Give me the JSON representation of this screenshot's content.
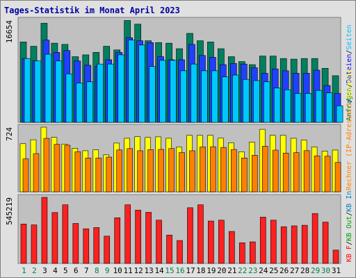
{
  "title": "Tages-Statistik im Monat April 2023",
  "colors": {
    "background": "#e0e0e0",
    "frame": "#808080",
    "panel": "#c0c0c0",
    "title": "#0000a0",
    "weekday_label": "#000000",
    "weekend_label": "#008040",
    "legend_hits": "#008040",
    "legend_files": "#0000ff",
    "legend_pages": "#00c0ff",
    "legend_visits": "#ff8000",
    "legend_sites": "#ffff00",
    "legend_kbin": "#0080c0",
    "legend_kbout": "#00a000",
    "legend_kbf": "#ff0000",
    "legend_sep": "#000000"
  },
  "chart_data": [
    {
      "type": "bar",
      "panel": "top",
      "ymax_label": "16654",
      "ymax": 16654,
      "categories": [
        "1",
        "2",
        "3",
        "4",
        "5",
        "6",
        "7",
        "8",
        "9",
        "10",
        "11",
        "12",
        "13",
        "14",
        "15",
        "16",
        "17",
        "18",
        "19",
        "20",
        "21",
        "22",
        "23",
        "24",
        "25",
        "26",
        "27",
        "28",
        "29",
        "30",
        "31"
      ],
      "weekend": [
        1,
        2,
        8,
        9,
        15,
        16,
        22,
        23,
        29,
        30
      ],
      "legend": [
        {
          "text": "Anfragen",
          "color": "#008040"
        },
        {
          "text": "/",
          "color": "#000000"
        },
        {
          "text": "Dateien",
          "color": "#0000ff"
        },
        {
          "text": "/",
          "color": "#000000"
        },
        {
          "text": "Seiten",
          "color": "#00c0ff"
        }
      ],
      "series": [
        {
          "name": "Anfragen",
          "color": "#008060",
          "values": [
            13100,
            12400,
            16150,
            12900,
            12700,
            10700,
            11000,
            11400,
            12400,
            11800,
            16600,
            16000,
            13300,
            13000,
            12900,
            12000,
            14500,
            13300,
            13100,
            12000,
            10700,
            9900,
            9400,
            10800,
            10800,
            10400,
            10300,
            10400,
            10400,
            8800,
            7600
          ]
        },
        {
          "name": "Dateien",
          "color": "#2040ff",
          "values": [
            10400,
            10000,
            13400,
            11400,
            11700,
            10000,
            9300,
            9100,
            10200,
            11400,
            13800,
            13300,
            13000,
            10700,
            10200,
            10200,
            12700,
            10900,
            10600,
            9400,
            9600,
            9500,
            8900,
            8000,
            8700,
            8400,
            8000,
            8000,
            8500,
            6000,
            4700
          ]
        },
        {
          "name": "Seiten",
          "color": "#00c8ff",
          "values": [
            10400,
            10000,
            11100,
            10000,
            7900,
            6400,
            6600,
            9500,
            9500,
            11000,
            13400,
            12600,
            9100,
            10100,
            10100,
            8400,
            9500,
            8400,
            8400,
            7400,
            7700,
            7000,
            6800,
            6600,
            5600,
            5300,
            4700,
            4700,
            5200,
            4800,
            2700
          ]
        }
      ]
    },
    {
      "type": "bar",
      "panel": "middle",
      "ymax_label": "724",
      "ymax": 724,
      "weekend": [
        1,
        2,
        8,
        9,
        15,
        16,
        22,
        23,
        29,
        30
      ],
      "legend": [
        {
          "text": "Rechner (IP-Adressen)",
          "color": "#ff8000"
        },
        {
          "text": "/",
          "color": "#000000"
        },
        {
          "text": "Besuche",
          "color": "#ffff00"
        }
      ],
      "series": [
        {
          "name": "Besuche",
          "color": "#ffff00",
          "values": [
            539,
            583,
            724,
            610,
            535,
            487,
            460,
            470,
            414,
            546,
            600,
            617,
            609,
            616,
            600,
            503,
            633,
            633,
            633,
            601,
            549,
            449,
            556,
            700,
            633,
            633,
            600,
            580,
            503,
            456,
            468
          ]
        },
        {
          "name": "Rechner (IP-Adressen)",
          "color": "#ff8000",
          "values": [
            369,
            428,
            599,
            532,
            522,
            450,
            378,
            378,
            389,
            469,
            484,
            460,
            472,
            475,
            485,
            440,
            460,
            503,
            505,
            497,
            474,
            379,
            410,
            511,
            467,
            434,
            439,
            461,
            403,
            399,
            329
          ]
        }
      ]
    },
    {
      "type": "bar",
      "panel": "bottom",
      "ymax_label": "545219",
      "ymax": 545219,
      "weekend": [
        1,
        2,
        8,
        9,
        15,
        16,
        22,
        23,
        29,
        30
      ],
      "legend": [
        {
          "text": "KB F",
          "color": "#ff0000"
        },
        {
          "text": "/",
          "color": "#000000"
        },
        {
          "text": "KB Out",
          "color": "#00a000"
        },
        {
          "text": "/",
          "color": "#000000"
        },
        {
          "text": "KB In",
          "color": "#0080c0"
        }
      ],
      "series": [
        {
          "name": "KB F",
          "color": "#ff2020",
          "values": [
            325000,
            318000,
            545219,
            420000,
            484000,
            330000,
            286000,
            296000,
            225000,
            377000,
            484000,
            440000,
            422000,
            357000,
            234000,
            189000,
            460000,
            484000,
            350000,
            357000,
            264000,
            170000,
            178000,
            382000,
            357000,
            303000,
            310000,
            315000,
            412000,
            341000,
            110000
          ]
        }
      ]
    }
  ]
}
